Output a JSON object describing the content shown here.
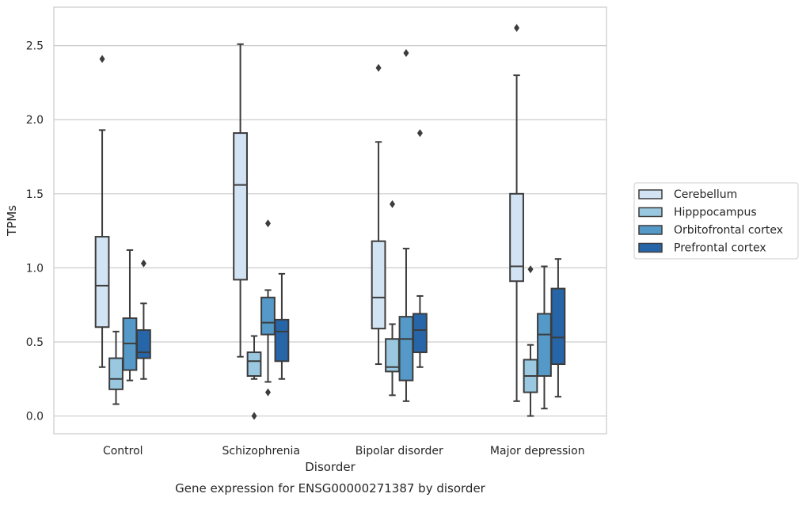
{
  "chart_data": {
    "type": "boxplot",
    "title": "",
    "caption": "Gene expression for ENSG00000271387 by disorder",
    "xlabel": "Disorder",
    "ylabel": "TPMs",
    "ylim": [
      -0.12,
      2.76
    ],
    "yticks": [
      "0.0",
      "0.5",
      "1.0",
      "1.5",
      "2.0",
      "2.5"
    ],
    "grid": "horizontal",
    "legend_position": "right",
    "categories": [
      "Control",
      "Schizophrenia",
      "Bipolar disorder",
      "Major depression"
    ],
    "series": [
      {
        "name": "Cerebellum",
        "color": "#d2e3f3",
        "boxes": [
          {
            "whislo": 0.33,
            "q1": 0.6,
            "med": 0.88,
            "q3": 1.21,
            "whishi": 1.93,
            "fliers": [
              2.41
            ]
          },
          {
            "whislo": 0.4,
            "q1": 0.92,
            "med": 1.56,
            "q3": 1.91,
            "whishi": 2.51,
            "fliers": []
          },
          {
            "whislo": 0.35,
            "q1": 0.59,
            "med": 0.8,
            "q3": 1.18,
            "whishi": 1.85,
            "fliers": [
              2.35
            ]
          },
          {
            "whislo": 0.1,
            "q1": 0.91,
            "med": 1.01,
            "q3": 1.5,
            "whishi": 2.3,
            "fliers": [
              2.62
            ]
          }
        ]
      },
      {
        "name": "Hipppocampus",
        "color": "#9ac8e0",
        "boxes": [
          {
            "whislo": 0.08,
            "q1": 0.18,
            "med": 0.25,
            "q3": 0.39,
            "whishi": 0.57,
            "fliers": []
          },
          {
            "whislo": 0.25,
            "q1": 0.27,
            "med": 0.37,
            "q3": 0.43,
            "whishi": 0.54,
            "fliers": [
              0.0
            ]
          },
          {
            "whislo": 0.14,
            "q1": 0.3,
            "med": 0.33,
            "q3": 0.52,
            "whishi": 0.62,
            "fliers": [
              1.43
            ]
          },
          {
            "whislo": 0.0,
            "q1": 0.16,
            "med": 0.27,
            "q3": 0.38,
            "whishi": 0.48,
            "fliers": [
              0.99
            ]
          }
        ]
      },
      {
        "name": "Orbitofrontal cortex",
        "color": "#5599c8",
        "boxes": [
          {
            "whislo": 0.24,
            "q1": 0.31,
            "med": 0.49,
            "q3": 0.66,
            "whishi": 1.12,
            "fliers": []
          },
          {
            "whislo": 0.23,
            "q1": 0.55,
            "med": 0.63,
            "q3": 0.8,
            "whishi": 0.85,
            "fliers": [
              1.3,
              0.16
            ]
          },
          {
            "whislo": 0.1,
            "q1": 0.24,
            "med": 0.52,
            "q3": 0.67,
            "whishi": 1.13,
            "fliers": [
              2.45
            ]
          },
          {
            "whislo": 0.05,
            "q1": 0.27,
            "med": 0.55,
            "q3": 0.69,
            "whishi": 1.01,
            "fliers": []
          }
        ]
      },
      {
        "name": "Prefrontal cortex",
        "color": "#2666a8",
        "boxes": [
          {
            "whislo": 0.25,
            "q1": 0.39,
            "med": 0.43,
            "q3": 0.58,
            "whishi": 0.76,
            "fliers": [
              1.03
            ]
          },
          {
            "whislo": 0.25,
            "q1": 0.37,
            "med": 0.57,
            "q3": 0.65,
            "whishi": 0.96,
            "fliers": []
          },
          {
            "whislo": 0.33,
            "q1": 0.43,
            "med": 0.58,
            "q3": 0.69,
            "whishi": 0.81,
            "fliers": [
              1.91
            ]
          },
          {
            "whislo": 0.13,
            "q1": 0.35,
            "med": 0.53,
            "q3": 0.86,
            "whishi": 1.06,
            "fliers": []
          }
        ]
      }
    ]
  }
}
